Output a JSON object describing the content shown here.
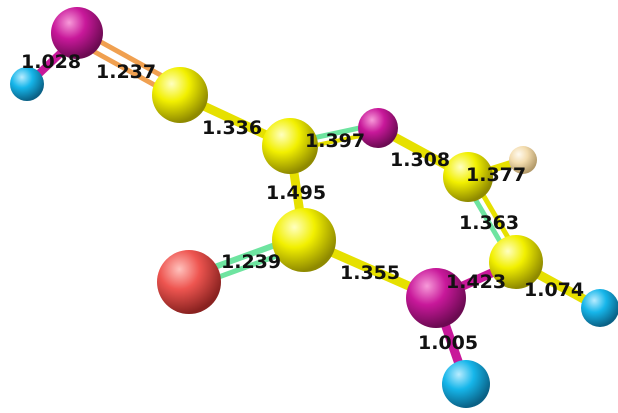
{
  "labels": {
    "l1": "1.028",
    "l2": "1.237",
    "l3": "1.336",
    "l4": "1.397",
    "l5": "1.308",
    "l6": "1.377",
    "l7": "1.495",
    "l8": "1.363",
    "l9": "1.239",
    "l10": "1.355",
    "l11": "1.423",
    "l12": "1.074",
    "l13": "1.005"
  },
  "atom_colors": {
    "magenta": "#c8189a",
    "yellow": "#f2f000",
    "cyan": "#16b6ea",
    "red": "#ee5550",
    "tan": "#f3dcae"
  },
  "bond_colors": {
    "orange": "#f0a050",
    "green": "#6ee4a0"
  }
}
